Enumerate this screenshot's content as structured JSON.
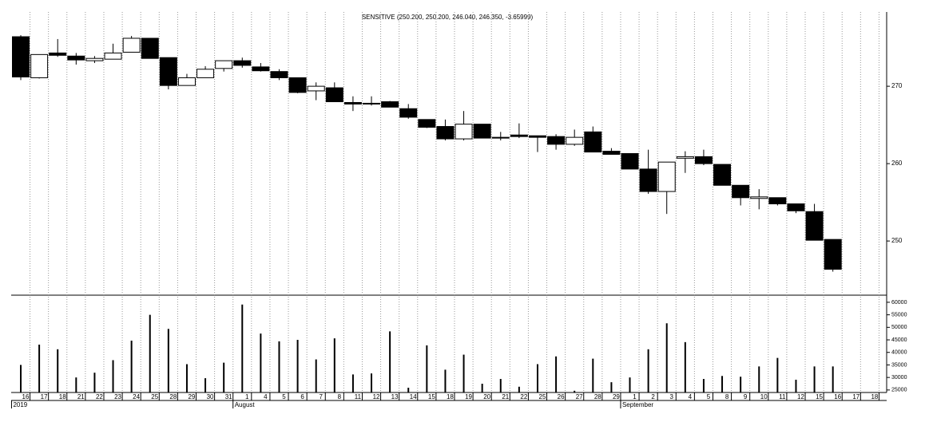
{
  "chart_data": {
    "type": "candlestick",
    "title": "SENSITIVE (250.200, 250.200, 246.040, 246.350, -3.65999)",
    "categories": [
      "16",
      "17",
      "18",
      "21",
      "22",
      "23",
      "24",
      "25",
      "28",
      "29",
      "30",
      "31",
      "1",
      "4",
      "5",
      "6",
      "7",
      "8",
      "11",
      "12",
      "13",
      "14",
      "15",
      "18",
      "19",
      "20",
      "21",
      "22",
      "25",
      "26",
      "27",
      "28",
      "29",
      "1",
      "2",
      "3",
      "4",
      "5",
      "8",
      "9",
      "10",
      "11",
      "12",
      "15",
      "16",
      "17",
      "18"
    ],
    "period_labels": [
      "2019",
      "August",
      "September"
    ],
    "open": [
      276.4,
      271.1,
      274.3,
      273.9,
      273.3,
      273.5,
      274.4,
      276.2,
      273.7,
      270.1,
      271.1,
      272.3,
      273.3,
      272.5,
      271.9,
      271.1,
      269.4,
      269.8,
      267.9,
      267.8,
      268.0,
      267.1,
      265.7,
      264.8,
      263.2,
      265.1,
      263.4,
      263.7,
      263.6,
      263.5,
      262.5,
      264.1,
      261.6,
      261.3,
      259.3,
      256.4,
      260.7,
      260.9,
      259.9,
      257.2,
      255.5,
      255.6,
      254.8,
      253.8,
      250.2,
      null,
      null
    ],
    "high": [
      276.6,
      274.1,
      276.1,
      274.3,
      273.9,
      275.5,
      276.5,
      276.2,
      273.7,
      271.6,
      272.6,
      273.3,
      273.7,
      273.0,
      272.2,
      271.1,
      270.5,
      270.5,
      268.7,
      268.7,
      268.1,
      267.7,
      265.7,
      265.7,
      266.8,
      265.1,
      264.1,
      265.2,
      263.6,
      263.8,
      264.4,
      264.8,
      262.0,
      261.3,
      261.8,
      260.2,
      261.6,
      261.8,
      259.9,
      257.2,
      256.7,
      255.6,
      254.8,
      254.8,
      250.2,
      null,
      null
    ],
    "low": [
      270.8,
      271.0,
      273.8,
      272.8,
      273.0,
      273.5,
      274.4,
      273.6,
      269.6,
      270.1,
      271.1,
      271.9,
      272.4,
      271.9,
      270.8,
      269.1,
      268.2,
      268.0,
      266.8,
      267.5,
      267.3,
      265.8,
      264.6,
      263.0,
      263.0,
      263.3,
      263.0,
      263.3,
      261.5,
      261.8,
      262.3,
      261.5,
      261.2,
      259.3,
      256.1,
      253.5,
      258.8,
      259.8,
      257.2,
      254.6,
      254.1,
      254.6,
      253.6,
      250.1,
      246.04,
      null,
      null
    ],
    "close": [
      271.2,
      274.1,
      274.0,
      273.4,
      273.6,
      274.3,
      276.2,
      273.6,
      270.1,
      271.1,
      272.2,
      273.3,
      272.7,
      272.0,
      271.1,
      269.2,
      270.0,
      268.0,
      267.7,
      267.7,
      267.3,
      266.0,
      264.7,
      263.2,
      265.1,
      263.3,
      263.3,
      263.5,
      263.4,
      262.5,
      263.4,
      261.5,
      261.2,
      259.3,
      256.4,
      260.2,
      260.9,
      260.0,
      257.2,
      255.6,
      255.7,
      254.8,
      253.9,
      250.1,
      246.35,
      null,
      null
    ],
    "volume": [
      35000,
      43100,
      41250,
      30000,
      31900,
      36900,
      44700,
      55000,
      49400,
      35300,
      29700,
      35900,
      59100,
      47500,
      44400,
      45000,
      37200,
      45600,
      31200,
      31600,
      48400,
      25900,
      42800,
      33100,
      39100,
      27500,
      29400,
      26300,
      35300,
      38400,
      24700,
      37500,
      28100,
      30000,
      41250,
      51600,
      44100,
      29400,
      30600,
      30300,
      34400,
      37800,
      29100,
      34400,
      34400,
      null,
      null
    ],
    "up_color": "#ffffff",
    "down_color": "#000000",
    "ylim": [
      243.0,
      279.6
    ],
    "yticks": [
      250,
      260,
      270
    ],
    "volume_ylim": [
      24000,
      62200
    ],
    "volume_yticks": [
      25000,
      30000,
      35000,
      40000,
      45000,
      50000,
      55000,
      60000
    ],
    "grid": true
  }
}
